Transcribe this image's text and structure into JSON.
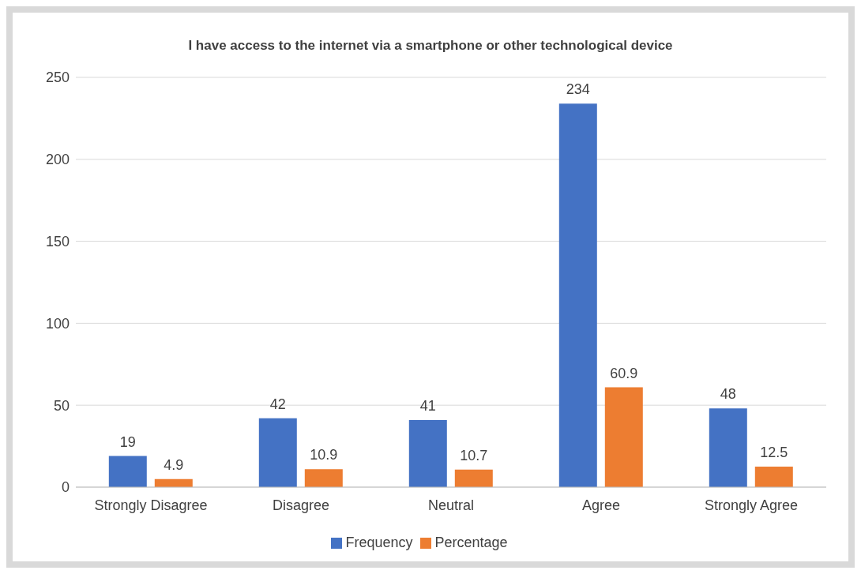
{
  "chart_data": {
    "type": "bar",
    "title": "I have access to the internet via a smartphone or other technological device",
    "categories": [
      "Strongly Disagree",
      "Disagree",
      "Neutral",
      "Agree",
      "Strongly Agree"
    ],
    "series": [
      {
        "name": "Frequency",
        "color": "#4472c4",
        "values": [
          19,
          42,
          41,
          234,
          48
        ]
      },
      {
        "name": "Percentage",
        "color": "#ed7d31",
        "values": [
          4.9,
          10.9,
          10.7,
          60.9,
          12.5
        ]
      }
    ],
    "ylim": [
      0,
      250
    ],
    "yticks": [
      0,
      50,
      100,
      150,
      200,
      250
    ],
    "grid": "y",
    "legend": "bottom",
    "data_labels": true
  }
}
